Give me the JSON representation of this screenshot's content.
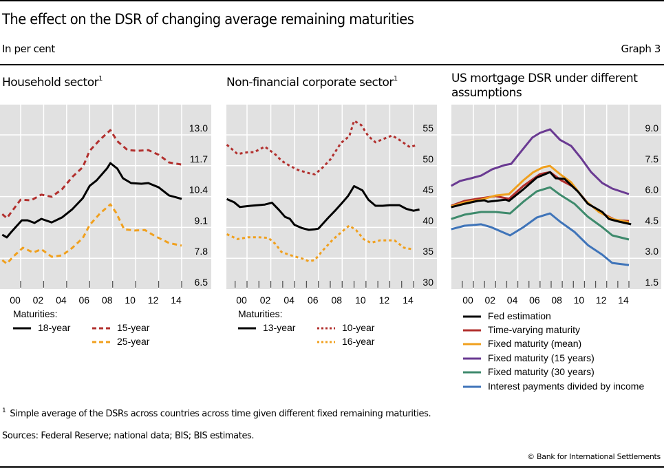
{
  "header": {
    "title": "The effect on the DSR of changing average remaining maturities",
    "units": "In per cent",
    "graph_label": "Graph 3"
  },
  "footer": {
    "footnote_marker": "1",
    "footnote": "Simple average of the DSRs across countries across time given different fixed remaining maturities.",
    "sources": "Sources: Federal Reserve; national data; BIS; BIS estimates.",
    "copyright": "© Bank for International Settlements"
  },
  "colors": {
    "background": "#e1e1e1",
    "grid": "#ffffff",
    "black": "#000000",
    "red": "#b2302e",
    "orange": "#f0a01e",
    "purple": "#6a3a92",
    "green": "#3e8a6c",
    "blue": "#3f74b9"
  },
  "chart_data": [
    {
      "type": "line",
      "title": "Household sector",
      "title_footnote": "1",
      "xlabel": "",
      "ylabel": "",
      "x_tick_labels": [
        "00",
        "02",
        "04",
        "06",
        "08",
        "10",
        "12",
        "14"
      ],
      "x_ticks": [
        2000,
        2002,
        2004,
        2006,
        2008,
        2010,
        2012,
        2014
      ],
      "xlim": [
        1998.3,
        2016.5
      ],
      "ylim": [
        6.5,
        13.0
      ],
      "y_ticks": [
        6.5,
        7.8,
        9.1,
        10.4,
        11.7,
        13.0
      ],
      "y_tick_labels": [
        "6.5",
        "7.8",
        "9.1",
        "10.4",
        "11.7",
        "13.0"
      ],
      "grid": true,
      "legend_title": "Maturities:",
      "legend_position": "bottom",
      "series": [
        {
          "name": "18-year",
          "color_key": "black",
          "style": "solid",
          "x": [
            1998.4,
            1998.8,
            1999.2,
            2000.1,
            2000.6,
            2001.2,
            2001.8,
            2002.7,
            2003.6,
            2004.5,
            2005.4,
            2006.0,
            2006.6,
            2007.5,
            2007.8,
            2008.4,
            2008.9,
            2009.6,
            2010.5,
            2011.1,
            2012.0,
            2012.9,
            2014.0
          ],
          "values": [
            8.79,
            8.68,
            8.91,
            9.4,
            9.4,
            9.29,
            9.46,
            9.31,
            9.52,
            9.87,
            10.33,
            10.85,
            11.08,
            11.58,
            11.81,
            11.58,
            11.17,
            10.97,
            10.94,
            10.97,
            10.79,
            10.45,
            10.3
          ]
        },
        {
          "name": "15-year",
          "color_key": "red",
          "style": "dashed",
          "x": [
            1998.4,
            1998.8,
            2000.0,
            2000.9,
            2001.8,
            2002.7,
            2003.6,
            2004.5,
            2005.4,
            2006.0,
            2006.9,
            2007.8,
            2008.4,
            2009.3,
            2010.2,
            2011.1,
            2012.0,
            2012.9,
            2014.0
          ],
          "values": [
            9.66,
            9.49,
            10.27,
            10.24,
            10.48,
            10.39,
            10.71,
            11.23,
            11.64,
            12.33,
            12.8,
            13.2,
            12.74,
            12.36,
            12.33,
            12.36,
            12.16,
            11.84,
            11.75
          ]
        },
        {
          "name": "25-year",
          "color_key": "orange",
          "style": "dashed",
          "x": [
            1998.4,
            1998.8,
            1999.4,
            2000.2,
            2001.1,
            2001.8,
            2002.7,
            2003.6,
            2004.5,
            2005.4,
            2006.0,
            2006.9,
            2007.8,
            2008.3,
            2009.0,
            2009.9,
            2010.8,
            2011.7,
            2012.9,
            2014.0
          ],
          "values": [
            7.72,
            7.57,
            7.89,
            8.24,
            8.04,
            8.18,
            7.86,
            7.92,
            8.24,
            8.65,
            9.2,
            9.69,
            10.07,
            9.72,
            9.02,
            8.97,
            8.99,
            8.73,
            8.44,
            8.33
          ]
        }
      ]
    },
    {
      "type": "line",
      "title": "Non-financial corporate sector",
      "title_footnote": "1",
      "xlabel": "",
      "ylabel": "",
      "x_tick_labels": [
        "00",
        "02",
        "04",
        "06",
        "08",
        "10",
        "12",
        "14"
      ],
      "x_ticks": [
        2000,
        2002,
        2004,
        2006,
        2008,
        2010,
        2012,
        2014
      ],
      "xlim": [
        1998.3,
        2016.0
      ],
      "ylim": [
        30,
        55
      ],
      "y_ticks": [
        30,
        35,
        40,
        45,
        50,
        55
      ],
      "y_tick_labels": [
        "30",
        "35",
        "40",
        "45",
        "50",
        "55"
      ],
      "grid": true,
      "legend_title": "Maturities:",
      "legend_position": "bottom",
      "series": [
        {
          "name": "13-year",
          "color_key": "black",
          "style": "solid",
          "x": [
            1998.3,
            1998.9,
            1999.4,
            2000.3,
            2000.9,
            2001.5,
            2002.1,
            2002.7,
            2003.2,
            2003.6,
            2004.0,
            2004.6,
            2005.2,
            2005.7,
            2006.0,
            2006.8,
            2007.4,
            2008.0,
            2008.5,
            2009.0,
            2009.7,
            2010.2,
            2010.8,
            2011.4,
            2012.0,
            2012.8,
            2013.4,
            2014.0,
            2014.5
          ],
          "values": [
            44.6,
            44.1,
            43.3,
            43.5,
            43.6,
            43.7,
            44.0,
            42.8,
            41.7,
            41.4,
            40.4,
            39.9,
            39.6,
            39.7,
            39.8,
            41.5,
            42.7,
            44.0,
            45.1,
            46.7,
            46.0,
            44.5,
            43.5,
            43.5,
            43.6,
            43.6,
            43.0,
            42.7,
            42.9
          ]
        },
        {
          "name": "10-year",
          "color_key": "red",
          "style": "dotted",
          "x": [
            1998.3,
            1999.2,
            2000.1,
            2000.6,
            2001.5,
            2002.4,
            2002.9,
            2003.5,
            2004.3,
            2005.2,
            2005.7,
            2006.3,
            2007.0,
            2007.9,
            2008.6,
            2009.0,
            2009.6,
            2010.2,
            2010.8,
            2011.4,
            2012.2,
            2012.8,
            2013.7,
            2014.3
          ],
          "values": [
            53.4,
            51.9,
            52.2,
            52.2,
            53.1,
            51.8,
            50.8,
            50.1,
            49.3,
            48.8,
            48.6,
            49.6,
            51.0,
            53.7,
            54.8,
            57.3,
            56.6,
            54.8,
            53.8,
            54.3,
            54.9,
            54.2,
            53.0,
            53.4
          ]
        },
        {
          "name": "16-year",
          "color_key": "orange",
          "style": "dotted",
          "x": [
            1998.3,
            1999.2,
            2000.1,
            2000.9,
            2001.8,
            2002.4,
            2002.9,
            2003.8,
            2004.7,
            2005.2,
            2005.7,
            2006.3,
            2007.2,
            2008.1,
            2008.6,
            2009.2,
            2009.8,
            2010.4,
            2011.2,
            2012.4,
            2013.2,
            2013.8
          ],
          "values": [
            38.9,
            38.1,
            38.4,
            38.4,
            38.3,
            37.3,
            36.0,
            35.4,
            34.9,
            34.5,
            34.7,
            36.1,
            38.0,
            39.5,
            40.3,
            39.5,
            38.1,
            37.5,
            37.9,
            37.9,
            36.7,
            36.5
          ]
        }
      ]
    },
    {
      "type": "line",
      "title": "US mortgage DSR under different assumptions",
      "xlabel": "",
      "ylabel": "",
      "x_tick_labels": [
        "00",
        "02",
        "04",
        "06",
        "08",
        "10",
        "12",
        "14"
      ],
      "x_ticks": [
        2000,
        2002,
        2004,
        2006,
        2008,
        2010,
        2012,
        2014
      ],
      "xlim": [
        1998.0,
        2016.8
      ],
      "ylim": [
        1.5,
        9.0
      ],
      "y_ticks": [
        1.5,
        3.0,
        4.5,
        6.0,
        7.5,
        9.0
      ],
      "y_tick_labels": [
        "1.5",
        "3.0",
        "4.5",
        "6.0",
        "7.5",
        "9.0"
      ],
      "grid": true,
      "legend_position": "bottom",
      "series": [
        {
          "name": "Fed estimation",
          "color_key": "black",
          "style": "solid",
          "x": [
            1998.0,
            1999.2,
            2000.4,
            2001.0,
            2001.3,
            2002.9,
            2003.2,
            2004.5,
            2005.7,
            2006.9,
            2007.4,
            2008.2,
            2009.4,
            2010.3,
            2011.6,
            2012.2,
            2013.1,
            2014.2
          ],
          "values": [
            5.48,
            5.65,
            5.79,
            5.82,
            5.75,
            5.85,
            5.79,
            6.35,
            6.92,
            7.19,
            6.89,
            6.86,
            6.25,
            5.65,
            5.25,
            4.91,
            4.78,
            4.65
          ]
        },
        {
          "name": "Time-varying maturity",
          "color_key": "red",
          "style": "solid",
          "x": [
            1998.0,
            1999.2,
            2000.7,
            2002.0,
            2003.2,
            2004.5,
            2006.0,
            2006.9,
            2007.9,
            2009.1,
            2010.3,
            2011.6,
            2012.8,
            2014.0
          ],
          "values": [
            5.55,
            5.79,
            5.92,
            6.02,
            5.89,
            6.52,
            7.09,
            7.19,
            6.79,
            6.45,
            5.68,
            5.18,
            4.85,
            4.81
          ]
        },
        {
          "name": "Fixed maturity (mean)",
          "color_key": "orange",
          "style": "solid",
          "x": [
            1998.0,
            1999.2,
            2000.7,
            2002.0,
            2003.2,
            2004.5,
            2005.4,
            2006.3,
            2006.9,
            2007.8,
            2008.8,
            2010.0,
            2011.3,
            2012.5,
            2014.0
          ],
          "values": [
            5.52,
            5.72,
            5.85,
            6.05,
            6.12,
            6.79,
            7.19,
            7.43,
            7.49,
            7.09,
            6.69,
            5.85,
            5.25,
            4.91,
            4.75
          ]
        },
        {
          "name": "Fixed maturity (15 years)",
          "color_key": "purple",
          "style": "solid",
          "x": [
            1998.0,
            1998.8,
            1999.8,
            2000.7,
            2001.7,
            2002.8,
            2003.4,
            2004.3,
            2005.3,
            2006.0,
            2006.9,
            2007.8,
            2008.8,
            2009.7,
            2010.6,
            2011.6,
            2012.5,
            2014.0
          ],
          "values": [
            6.52,
            6.76,
            6.89,
            7.02,
            7.33,
            7.53,
            7.59,
            8.2,
            8.87,
            9.1,
            9.27,
            8.76,
            8.46,
            7.86,
            7.19,
            6.66,
            6.39,
            6.12
          ]
        },
        {
          "name": "Fixed maturity (30 years)",
          "color_key": "green",
          "style": "solid",
          "x": [
            1998.0,
            1999.2,
            2000.7,
            2002.0,
            2003.3,
            2004.5,
            2005.7,
            2006.9,
            2007.8,
            2009.1,
            2010.3,
            2011.6,
            2012.5,
            2014.0
          ],
          "values": [
            4.91,
            5.12,
            5.25,
            5.25,
            5.18,
            5.75,
            6.25,
            6.45,
            6.09,
            5.65,
            5.02,
            4.51,
            4.11,
            3.91
          ]
        },
        {
          "name": "Interest payments divided by income",
          "color_key": "blue",
          "style": "solid",
          "x": [
            1998.0,
            1999.2,
            2000.7,
            2001.6,
            2003.3,
            2004.5,
            2005.7,
            2006.9,
            2007.8,
            2009.1,
            2010.3,
            2011.6,
            2012.5,
            2014.0
          ],
          "values": [
            4.41,
            4.58,
            4.65,
            4.51,
            4.11,
            4.51,
            4.98,
            5.18,
            4.78,
            4.28,
            3.64,
            3.17,
            2.77,
            2.67
          ]
        }
      ]
    }
  ]
}
